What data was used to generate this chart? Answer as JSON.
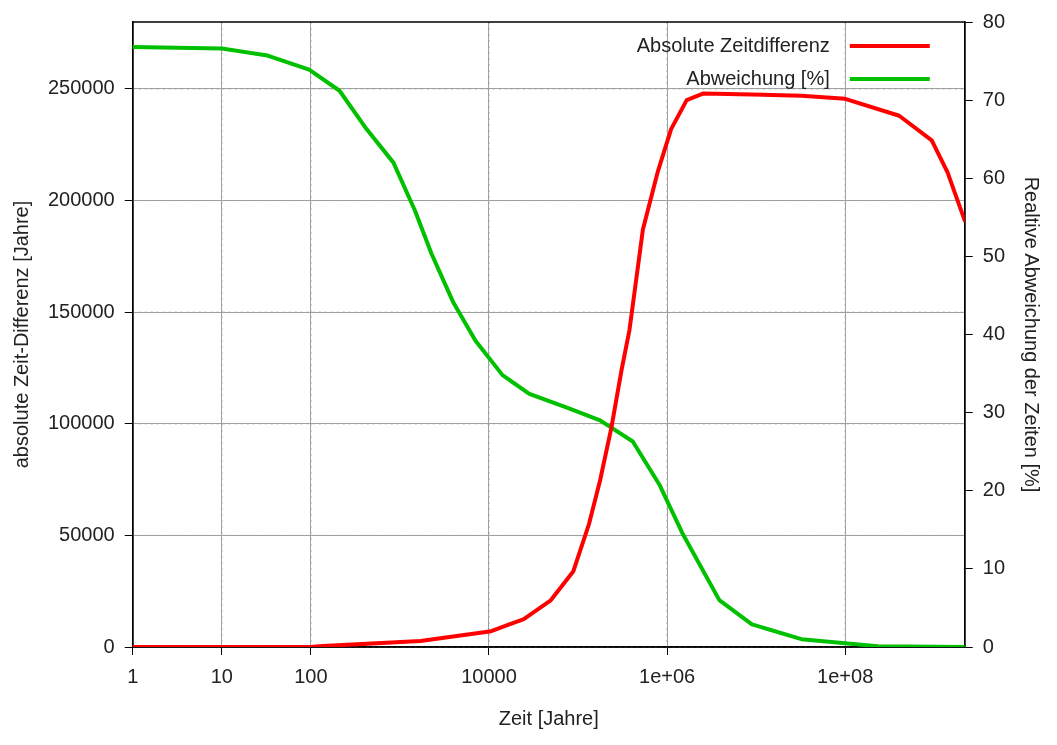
{
  "chart_data": {
    "type": "line",
    "xlabel": "Zeit [Jahre]",
    "ylabel": "absolute Zeit-Differenz [Jahre]",
    "y2label": "Realtive Abweichung der Zeiten [%]",
    "log": "x",
    "grid": true,
    "legend": "top right",
    "marker": "none",
    "line_style": "solid",
    "xlim": [
      1,
      2200000000
    ],
    "xticks": [
      1,
      10,
      100,
      10000,
      {
        "value": 1000000,
        "label": "1e+06"
      },
      {
        "value": 100000000,
        "label": "1e+08"
      }
    ],
    "ylim": [
      0,
      280000
    ],
    "yticks": [
      0,
      50000,
      100000,
      150000,
      200000,
      250000
    ],
    "y2lim": [
      0,
      80
    ],
    "y2ticks": [
      0,
      10,
      20,
      30,
      40,
      50,
      60,
      70,
      80
    ],
    "series": [
      {
        "name": "Absolute Zeitdifferenz",
        "color": "#ff0000",
        "x": [
          1,
          98.6,
          136,
          1700,
          10600,
          24600,
          49400,
          88300,
          133000,
          177000,
          237000,
          308000,
          378000,
          535000,
          782000,
          1110000,
          1660000,
          2570000,
          32200000,
          100000000,
          404000000,
          937000000,
          1410000000,
          2200000000
        ],
        "values": [
          0,
          0,
          400,
          2700,
          7100,
          12500,
          20900,
          33800,
          55200,
          74700,
          98300,
          124000,
          142000,
          187000,
          212600,
          232000,
          245000,
          248000,
          247000,
          245600,
          238000,
          227000,
          212600,
          191000
        ]
      },
      {
        "name": "Abweichung [%]",
        "color": "#00c000",
        "axis": "y2",
        "x": [
          1,
          10,
          32.7,
          95.7,
          210,
          422,
          846,
          1470,
          2270,
          3940,
          7060,
          14200,
          28400,
          76400,
          177000,
          412000,
          828000,
          1480000,
          3860000,
          8970000,
          32200000,
          232000000,
          2200000000
        ],
        "values": [
          76.8,
          76.6,
          75.7,
          73.9,
          71.2,
          66.3,
          62.0,
          55.9,
          50.3,
          44.2,
          39.2,
          34.8,
          32.4,
          30.6,
          29.0,
          26.3,
          20.7,
          14.6,
          6.0,
          2.9,
          1.0,
          0.1,
          0
        ]
      }
    ]
  }
}
